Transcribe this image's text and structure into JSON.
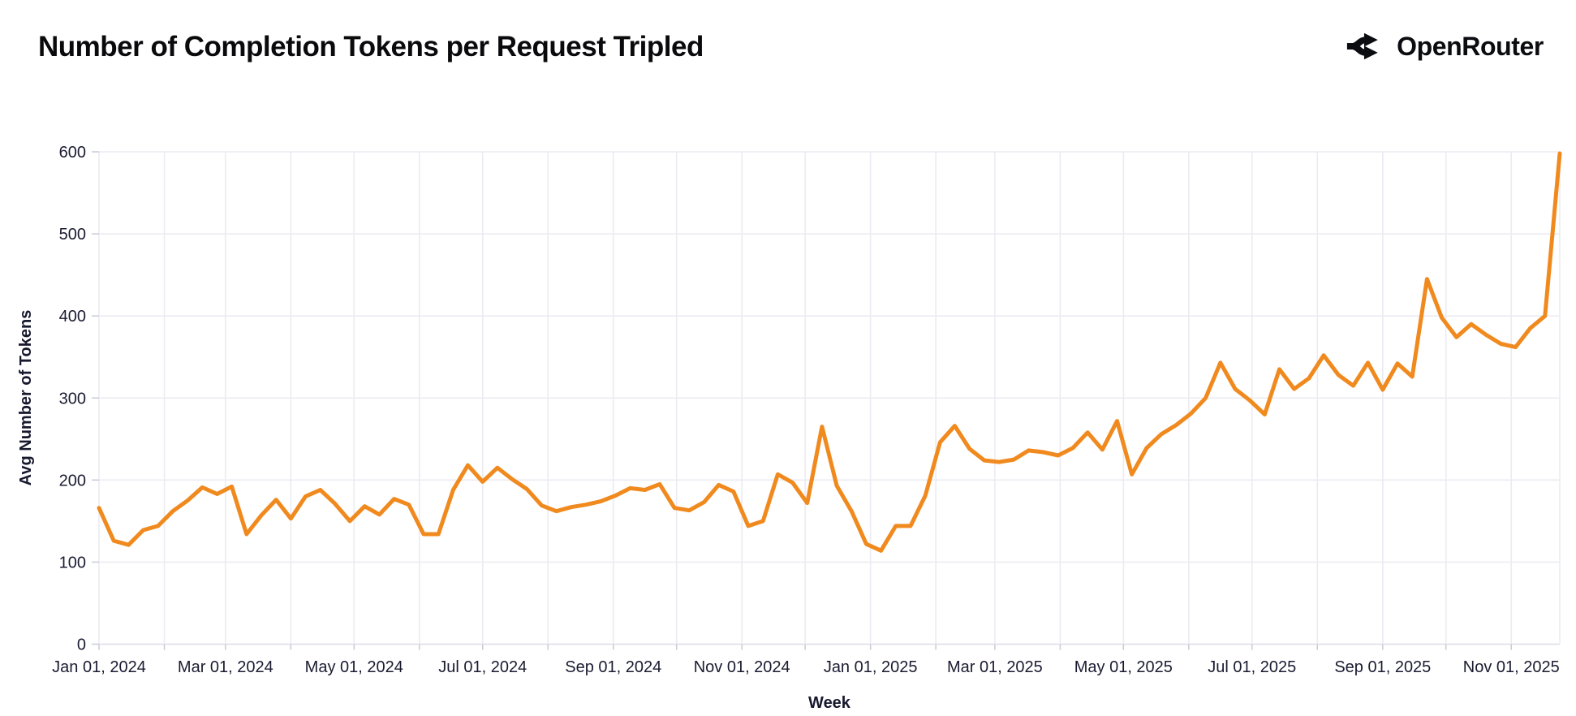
{
  "page": {
    "title": "Number of Completion Tokens per Request Tripled"
  },
  "logo": {
    "text": "OpenRouter",
    "icon": "openrouter-fork-arrows-icon"
  },
  "colors": {
    "line": "#f08a1e",
    "grid": "#ebebf2",
    "axis_line": "#dcdce6",
    "tick_mark": "#c9cad6",
    "tick_label": "#1a1b31",
    "axis_title": "#16182d",
    "title_text": "#0a0a0d",
    "background": "#ffffff"
  },
  "chart_data": {
    "type": "line",
    "title": "Number of Completion Tokens per Request Tripled",
    "xlabel": "Week",
    "ylabel": "Avg Number of Tokens",
    "grid": true,
    "legend": "none",
    "ylim": [
      0,
      600
    ],
    "y_ticks": [
      0,
      100,
      200,
      300,
      400,
      500,
      600
    ],
    "x_start_date": "2024-01-01",
    "x_end_date": "2025-11-24",
    "x_interval_days": 7,
    "x_tick_dates": [
      "2024-01-01",
      "2024-03-01",
      "2024-05-01",
      "2024-07-01",
      "2024-09-01",
      "2024-11-01",
      "2025-01-01",
      "2025-03-01",
      "2025-05-01",
      "2025-07-01",
      "2025-09-01",
      "2025-11-01"
    ],
    "x_tick_labels": [
      "Jan 01, 2024",
      "Mar 01, 2024",
      "May 01, 2024",
      "Jul 01, 2024",
      "Sep 01, 2024",
      "Nov 01, 2024",
      "Jan 01, 2025",
      "Mar 01, 2025",
      "May 01, 2025",
      "Jul 01, 2025",
      "Sep 01, 2025",
      "Nov 01, 2025"
    ],
    "series": [
      {
        "name": "Avg Number of Tokens",
        "values": [
          166,
          126,
          121,
          139,
          144,
          162,
          175,
          191,
          183,
          192,
          134,
          157,
          176,
          153,
          180,
          188,
          171,
          150,
          168,
          158,
          177,
          170,
          134,
          134,
          188,
          218,
          198,
          215,
          201,
          189,
          169,
          162,
          167,
          170,
          174,
          181,
          190,
          188,
          195,
          166,
          163,
          173,
          194,
          186,
          144,
          150,
          207,
          197,
          172,
          265,
          193,
          162,
          122,
          114,
          144,
          144,
          181,
          246,
          266,
          238,
          224,
          222,
          225,
          236,
          234,
          230,
          239,
          258,
          237,
          272,
          207,
          239,
          256,
          267,
          281,
          300,
          343,
          311,
          297,
          280,
          335,
          311,
          324,
          352,
          328,
          315,
          343,
          310,
          342,
          326,
          445,
          398,
          374,
          390,
          377,
          366,
          362,
          385,
          400,
          598
        ]
      }
    ]
  }
}
